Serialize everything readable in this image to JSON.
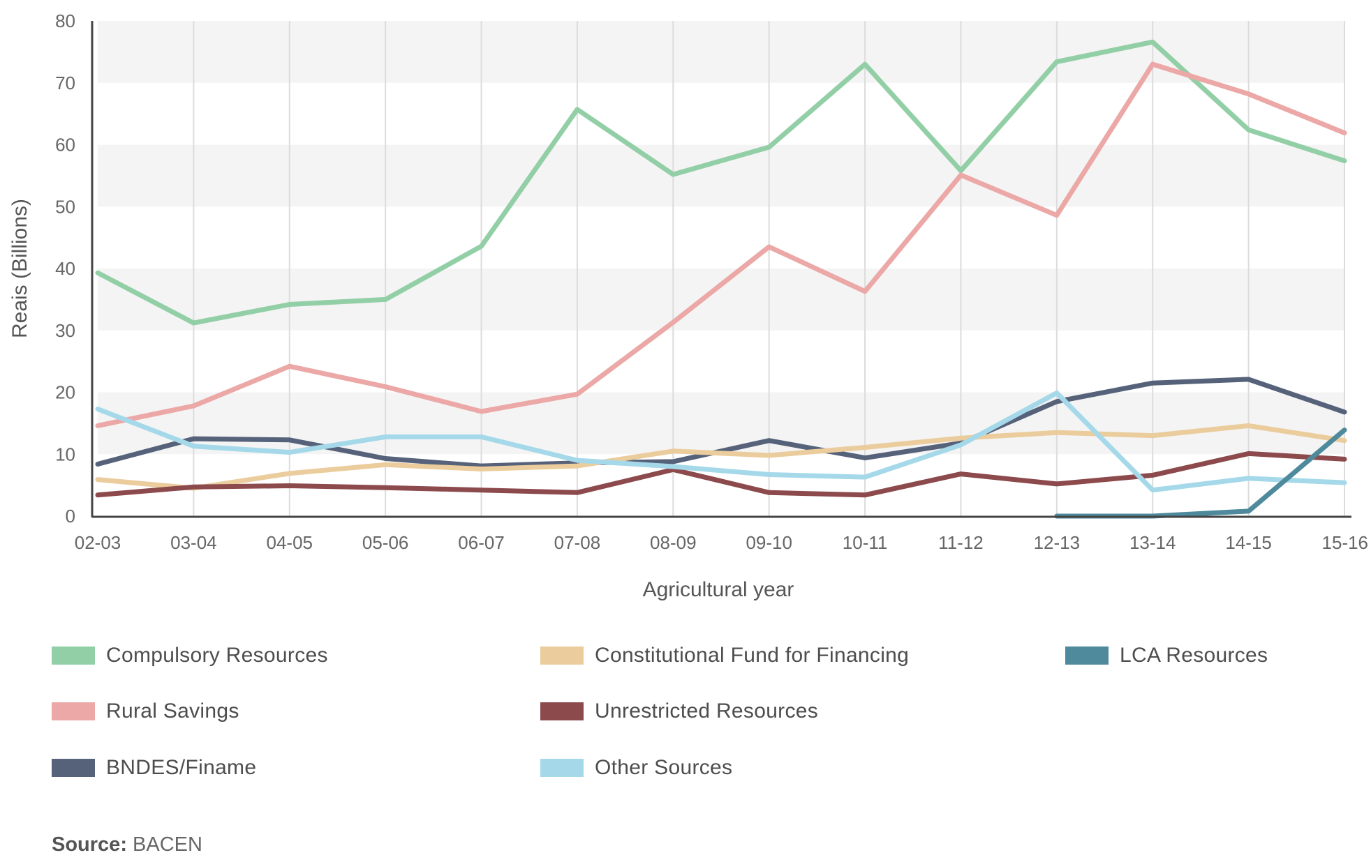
{
  "chart_data": {
    "type": "line",
    "xlabel": "Agricultural year",
    "ylabel": "Reais (Billions)",
    "ylim": [
      0,
      80
    ],
    "yticks": [
      0,
      10,
      20,
      30,
      40,
      50,
      60,
      70,
      80
    ],
    "grid": "alternating horizontal bands, vertical gridlines",
    "categories": [
      "02-03",
      "03-04",
      "04-05",
      "05-06",
      "06-07",
      "07-08",
      "08-09",
      "09-10",
      "10-11",
      "11-12",
      "12-13",
      "13-14",
      "14-15",
      "15-16"
    ],
    "legend_position": "bottom",
    "series": [
      {
        "name": "Compulsory Resources",
        "color": "#93cfa6",
        "values": [
          39.3,
          31.2,
          34.2,
          35.0,
          43.6,
          65.7,
          55.2,
          59.6,
          73.0,
          55.8,
          73.4,
          76.6,
          62.4,
          57.4
        ]
      },
      {
        "name": "Rural Savings",
        "color": "#eba8a6",
        "values": [
          14.6,
          17.8,
          24.2,
          20.9,
          16.9,
          19.7,
          31.3,
          43.5,
          36.3,
          55.1,
          48.6,
          73.0,
          68.2,
          61.9
        ]
      },
      {
        "name": "BNDES/Finame",
        "color": "#56627a",
        "values": [
          8.4,
          12.5,
          12.3,
          9.3,
          8.1,
          8.6,
          8.8,
          12.2,
          9.4,
          11.8,
          18.5,
          21.5,
          22.1,
          16.8
        ]
      },
      {
        "name": "Constitutional Fund for Financing",
        "color": "#ebcc9c",
        "values": [
          5.9,
          4.5,
          6.9,
          8.3,
          7.6,
          8.1,
          10.5,
          9.8,
          11.1,
          12.6,
          13.5,
          13.0,
          14.6,
          12.2
        ]
      },
      {
        "name": "Unrestricted Resources",
        "color": "#8c4a4c",
        "values": [
          3.4,
          4.7,
          4.9,
          4.6,
          4.2,
          3.8,
          7.5,
          3.8,
          3.4,
          6.8,
          5.2,
          6.6,
          10.1,
          9.2
        ]
      },
      {
        "name": "Other Sources",
        "color": "#a5d9ea",
        "values": [
          17.3,
          11.3,
          10.3,
          12.8,
          12.8,
          9.0,
          8.0,
          6.7,
          6.3,
          11.5,
          19.9,
          4.2,
          6.1,
          5.4
        ]
      },
      {
        "name": "LCA Resources",
        "color": "#4e8a9b",
        "values": [
          null,
          null,
          null,
          null,
          null,
          null,
          null,
          null,
          null,
          null,
          0.0,
          0.0,
          0.8,
          13.9
        ]
      }
    ]
  },
  "legend": {
    "items": [
      {
        "label": "Compulsory Resources",
        "color": "#93cfa6"
      },
      {
        "label": "Constitutional Fund for Financing",
        "color": "#ebcc9c"
      },
      {
        "label": "LCA Resources",
        "color": "#4e8a9b"
      },
      {
        "label": "Rural Savings",
        "color": "#eba8a6"
      },
      {
        "label": "Unrestricted Resources",
        "color": "#8c4a4c"
      },
      {
        "label": "BNDES/Finame",
        "color": "#56627a"
      },
      {
        "label": "Other Sources",
        "color": "#a5d9ea"
      }
    ]
  },
  "source": {
    "label": "Source:",
    "value": " BACEN"
  }
}
